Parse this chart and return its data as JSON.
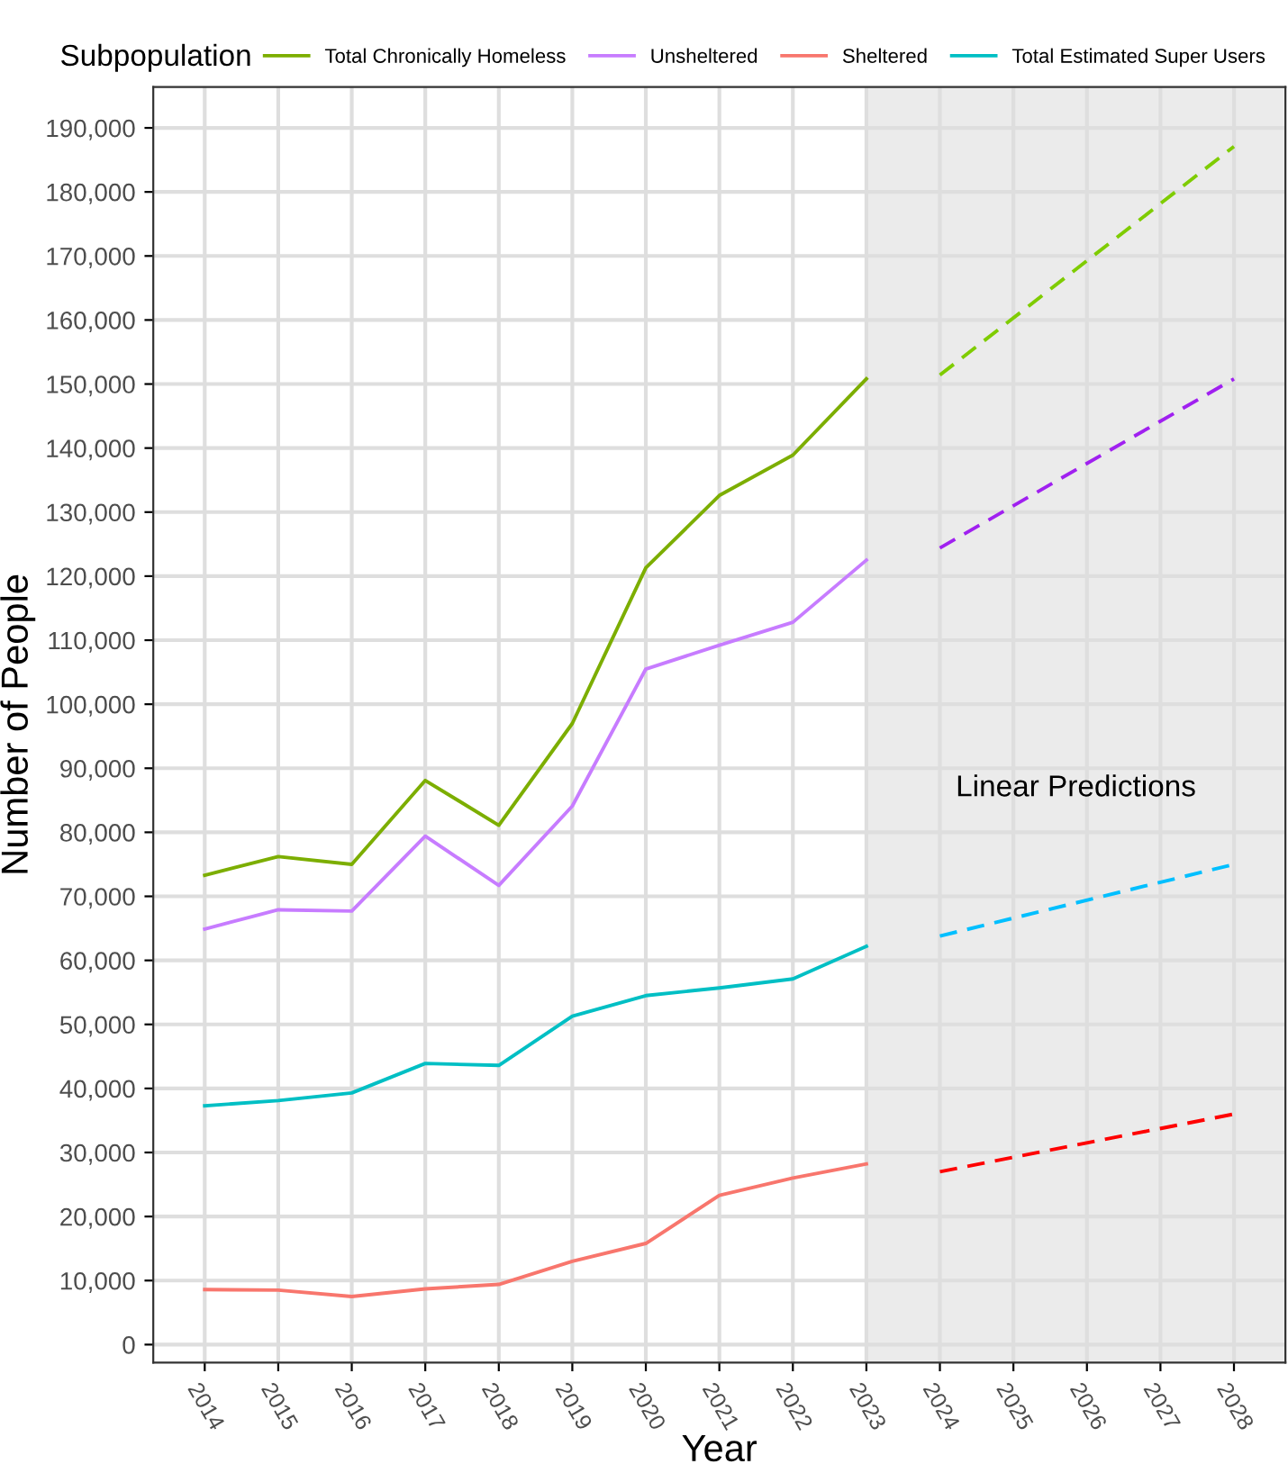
{
  "chart_data": {
    "type": "line",
    "xlabel": "Year",
    "ylabel": "Number of People",
    "legend_title": "Subpopulation",
    "legend": "top",
    "series": [
      {
        "name": "Total Chronically Homeless",
        "color": "#7cae00",
        "x": [
          2014,
          2015,
          2016,
          2017,
          2018,
          2019,
          2020,
          2021,
          2022,
          2023
        ],
        "values": [
          73300,
          76200,
          75000,
          88100,
          81100,
          97000,
          121300,
          132600,
          138900,
          150800
        ]
      },
      {
        "name": "Unsheltered",
        "color": "#c77cff",
        "x": [
          2014,
          2015,
          2016,
          2017,
          2018,
          2019,
          2020,
          2021,
          2022,
          2023
        ],
        "values": [
          64900,
          67900,
          67700,
          79400,
          71700,
          84100,
          105500,
          109200,
          112800,
          122500
        ]
      },
      {
        "name": "Sheltered",
        "color": "#f8766d",
        "x": [
          2014,
          2015,
          2016,
          2017,
          2018,
          2019,
          2020,
          2021,
          2022,
          2023
        ],
        "values": [
          8600,
          8500,
          7500,
          8700,
          9400,
          13000,
          15800,
          23300,
          26000,
          28200
        ]
      },
      {
        "name": "Total Estimated Super Users",
        "color": "#00bfc4",
        "x": [
          2014,
          2015,
          2016,
          2017,
          2018,
          2019,
          2020,
          2021,
          2022,
          2023
        ],
        "values": [
          37300,
          38100,
          39300,
          43900,
          43600,
          51300,
          54500,
          55700,
          57100,
          62200
        ]
      },
      {
        "color": "#7fcc00",
        "line_style": "dashed",
        "x": [
          2024,
          2028
        ],
        "values": [
          151400,
          187100
        ]
      },
      {
        "color": "#a020f0",
        "line_style": "dashed",
        "x": [
          2024,
          2028
        ],
        "values": [
          124400,
          150800
        ]
      },
      {
        "color": "#00bfff",
        "line_style": "dashed",
        "x": [
          2024,
          2028
        ],
        "values": [
          63800,
          75000
        ]
      },
      {
        "color": "#ff0000",
        "line_style": "dashed",
        "x": [
          2024,
          2028
        ],
        "values": [
          27000,
          36000
        ]
      }
    ],
    "bands": [
      {
        "axis": "x",
        "from": 2023,
        "to": 2028.7,
        "label": "Linear Predictions",
        "color": "#ebebeb"
      }
    ],
    "xlim": [
      2013.3,
      2028.7
    ],
    "xticks": [
      2014,
      2015,
      2016,
      2017,
      2018,
      2019,
      2020,
      2021,
      2022,
      2023,
      2024,
      2025,
      2026,
      2027,
      2028
    ],
    "ylim": [
      -2800,
      196400
    ],
    "yticks": [
      {
        "value": 0,
        "label": "0"
      },
      {
        "value": 10000,
        "label": "10,000"
      },
      {
        "value": 20000,
        "label": "20,000"
      },
      {
        "value": 30000,
        "label": "30,000"
      },
      {
        "value": 40000,
        "label": "40,000"
      },
      {
        "value": 50000,
        "label": "50,000"
      },
      {
        "value": 60000,
        "label": "60,000"
      },
      {
        "value": 70000,
        "label": "70,000"
      },
      {
        "value": 80000,
        "label": "80,000"
      },
      {
        "value": 90000,
        "label": "90,000"
      },
      {
        "value": 100000,
        "label": "100,000"
      },
      {
        "value": 110000,
        "label": "110,000"
      },
      {
        "value": 120000,
        "label": "120,000"
      },
      {
        "value": 130000,
        "label": "130,000"
      },
      {
        "value": 140000,
        "label": "140,000"
      },
      {
        "value": 150000,
        "label": "150,000"
      },
      {
        "value": 160000,
        "label": "160,000"
      },
      {
        "value": 170000,
        "label": "170,000"
      },
      {
        "value": 180000,
        "label": "180,000"
      },
      {
        "value": 190000,
        "label": "190,000"
      }
    ],
    "grid": true
  }
}
